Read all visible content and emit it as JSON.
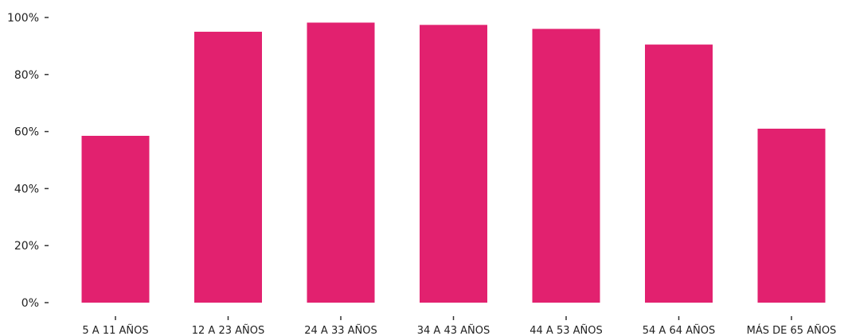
{
  "chart_data": {
    "type": "bar",
    "categories": [
      "5 A 11 AÑOS",
      "12 A 23 AÑOS",
      "24 A 33 AÑOS",
      "34 A 43 AÑOS",
      "44 A 53 AÑOS",
      "54 A 64 AÑOS",
      "MÁS DE 65 AÑOS"
    ],
    "values": [
      58.5,
      95,
      98.2,
      97.4,
      96,
      90.5,
      61
    ],
    "ylim": [
      0,
      100
    ],
    "yticks": [
      0,
      20,
      40,
      60,
      80,
      100
    ],
    "ytick_labels": [
      "0%",
      "20%",
      "40%",
      "60%",
      "80%",
      "100%"
    ],
    "bar_color": "#E2216F",
    "grid": false,
    "legend": "none"
  }
}
